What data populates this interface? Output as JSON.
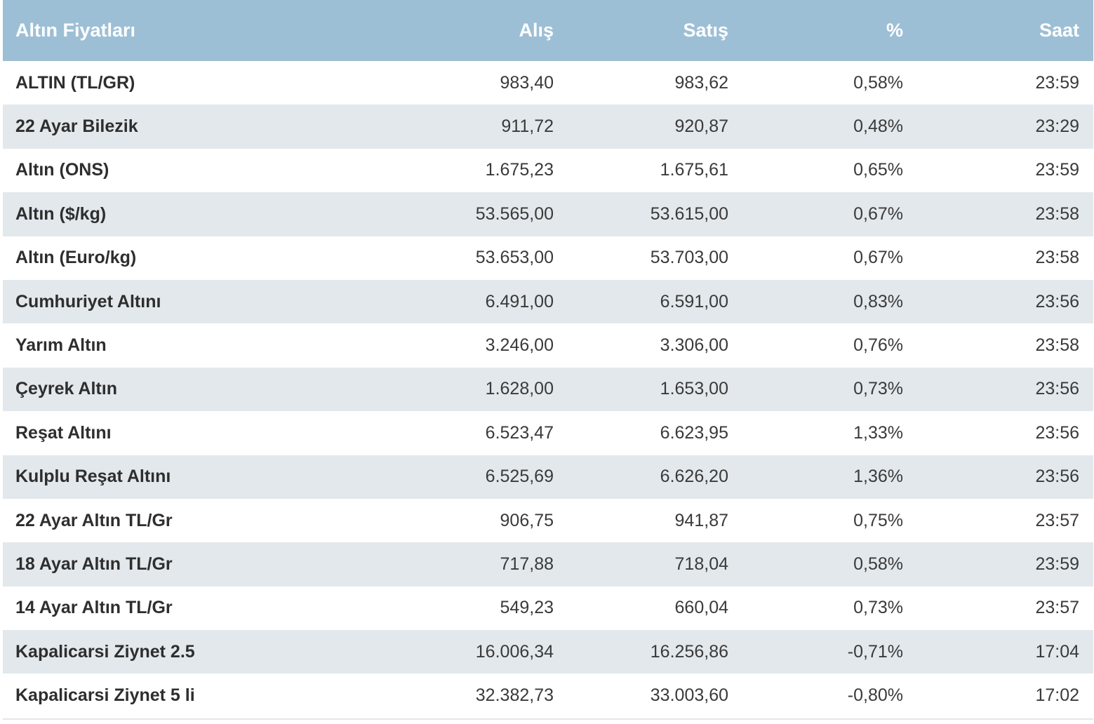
{
  "table": {
    "headers": {
      "name": "Altın Fiyatları",
      "buy": "Alış",
      "sell": "Satış",
      "percent": "%",
      "time": "Saat"
    },
    "rows": [
      {
        "name": "ALTIN (TL/GR)",
        "buy": "983,40",
        "sell": "983,62",
        "percent": "0,58%",
        "time": "23:59"
      },
      {
        "name": "22 Ayar Bilezik",
        "buy": "911,72",
        "sell": "920,87",
        "percent": "0,48%",
        "time": "23:29"
      },
      {
        "name": "Altın (ONS)",
        "buy": "1.675,23",
        "sell": "1.675,61",
        "percent": "0,65%",
        "time": "23:59"
      },
      {
        "name": "Altın ($/kg)",
        "buy": "53.565,00",
        "sell": "53.615,00",
        "percent": "0,67%",
        "time": "23:58"
      },
      {
        "name": "Altın (Euro/kg)",
        "buy": "53.653,00",
        "sell": "53.703,00",
        "percent": "0,67%",
        "time": "23:58"
      },
      {
        "name": "Cumhuriyet Altını",
        "buy": "6.491,00",
        "sell": "6.591,00",
        "percent": "0,83%",
        "time": "23:56"
      },
      {
        "name": "Yarım Altın",
        "buy": "3.246,00",
        "sell": "3.306,00",
        "percent": "0,76%",
        "time": "23:58"
      },
      {
        "name": "Çeyrek Altın",
        "buy": "1.628,00",
        "sell": "1.653,00",
        "percent": "0,73%",
        "time": "23:56"
      },
      {
        "name": "Reşat Altını",
        "buy": "6.523,47",
        "sell": "6.623,95",
        "percent": "1,33%",
        "time": "23:56"
      },
      {
        "name": "Kulplu Reşat Altını",
        "buy": "6.525,69",
        "sell": "6.626,20",
        "percent": "1,36%",
        "time": "23:56"
      },
      {
        "name": "22 Ayar Altın TL/Gr",
        "buy": "906,75",
        "sell": "941,87",
        "percent": "0,75%",
        "time": "23:57"
      },
      {
        "name": "18 Ayar Altın TL/Gr",
        "buy": "717,88",
        "sell": "718,04",
        "percent": "0,58%",
        "time": "23:59"
      },
      {
        "name": "14 Ayar Altın TL/Gr",
        "buy": "549,23",
        "sell": "660,04",
        "percent": "0,73%",
        "time": "23:57"
      },
      {
        "name": "Kapalicarsi Ziynet 2.5",
        "buy": "16.006,34",
        "sell": "16.256,86",
        "percent": "-0,71%",
        "time": "17:04"
      },
      {
        "name": "Kapalicarsi Ziynet 5 li",
        "buy": "32.382,73",
        "sell": "33.003,60",
        "percent": "-0,80%",
        "time": "17:02"
      }
    ]
  },
  "colors": {
    "header_bg": "#9dbfd5",
    "header_text": "#ffffff",
    "row_alt_bg": "#e2e8ec",
    "row_bg": "#ffffff",
    "text": "#333333"
  }
}
